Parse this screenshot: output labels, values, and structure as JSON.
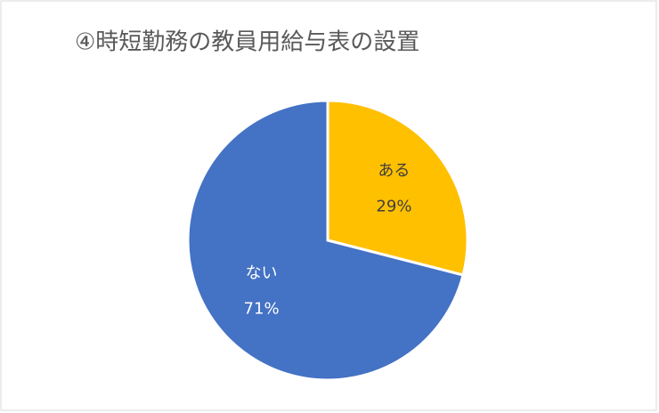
{
  "chart_data": {
    "type": "pie",
    "title": "④時短勤務の教員用給与表の設置",
    "categories": [
      "ある",
      "ない"
    ],
    "values": [
      29,
      71
    ],
    "value_labels": [
      "29%",
      "71%"
    ],
    "colors": [
      "#ffc000",
      "#4472c4"
    ]
  }
}
